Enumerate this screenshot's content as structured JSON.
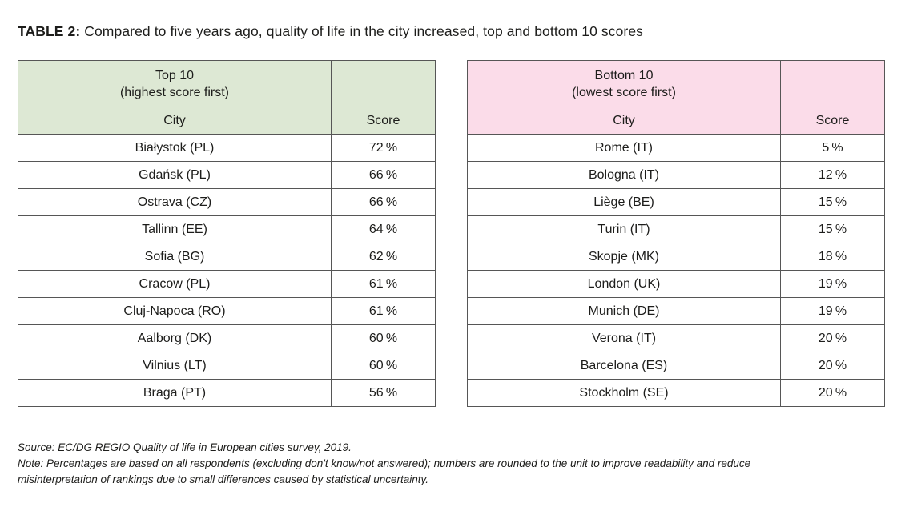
{
  "title": {
    "label": "TABLE 2:",
    "text": "Compared to five years ago, quality of life in the city increased, top and bottom 10 scores"
  },
  "colors": {
    "top_header_bg": "#dde8d4",
    "bottom_header_bg": "#fbdce9",
    "border_color": "#565656",
    "text_color": "#1d1d1b"
  },
  "tables": [
    {
      "id": "top10",
      "header_title": "Top 10",
      "header_subtitle": "(highest score first)",
      "columns": [
        "City",
        "Score"
      ],
      "rows": [
        {
          "city": "Białystok (PL)",
          "score": "72 %"
        },
        {
          "city": "Gdańsk (PL)",
          "score": "66 %"
        },
        {
          "city": "Ostrava (CZ)",
          "score": "66 %"
        },
        {
          "city": "Tallinn (EE)",
          "score": "64 %"
        },
        {
          "city": "Sofia (BG)",
          "score": "62 %"
        },
        {
          "city": "Cracow (PL)",
          "score": "61 %"
        },
        {
          "city": "Cluj-Napoca (RO)",
          "score": "61 %"
        },
        {
          "city": "Aalborg (DK)",
          "score": "60 %"
        },
        {
          "city": "Vilnius (LT)",
          "score": "60 %"
        },
        {
          "city": "Braga (PT)",
          "score": "56 %"
        }
      ]
    },
    {
      "id": "bottom10",
      "header_title": "Bottom 10",
      "header_subtitle": "(lowest score first)",
      "columns": [
        "City",
        "Score"
      ],
      "rows": [
        {
          "city": "Rome (IT)",
          "score": "5 %"
        },
        {
          "city": "Bologna (IT)",
          "score": "12 %"
        },
        {
          "city": "Liège (BE)",
          "score": "15 %"
        },
        {
          "city": "Turin (IT)",
          "score": "15 %"
        },
        {
          "city": "Skopje (MK)",
          "score": "18 %"
        },
        {
          "city": "London (UK)",
          "score": "19 %"
        },
        {
          "city": "Munich (DE)",
          "score": "19 %"
        },
        {
          "city": "Verona (IT)",
          "score": "20 %"
        },
        {
          "city": "Barcelona (ES)",
          "score": "20 %"
        },
        {
          "city": "Stockholm (SE)",
          "score": "20 %"
        }
      ]
    }
  ],
  "footer": {
    "source": "Source: EC/DG REGIO Quality of life in European cities survey, 2019.",
    "note": "Note: Percentages are based on all respondents (excluding don't know/not answered); numbers are rounded to the unit to improve readability and reduce misinterpretation of rankings due to small differences caused by statistical uncertainty."
  }
}
